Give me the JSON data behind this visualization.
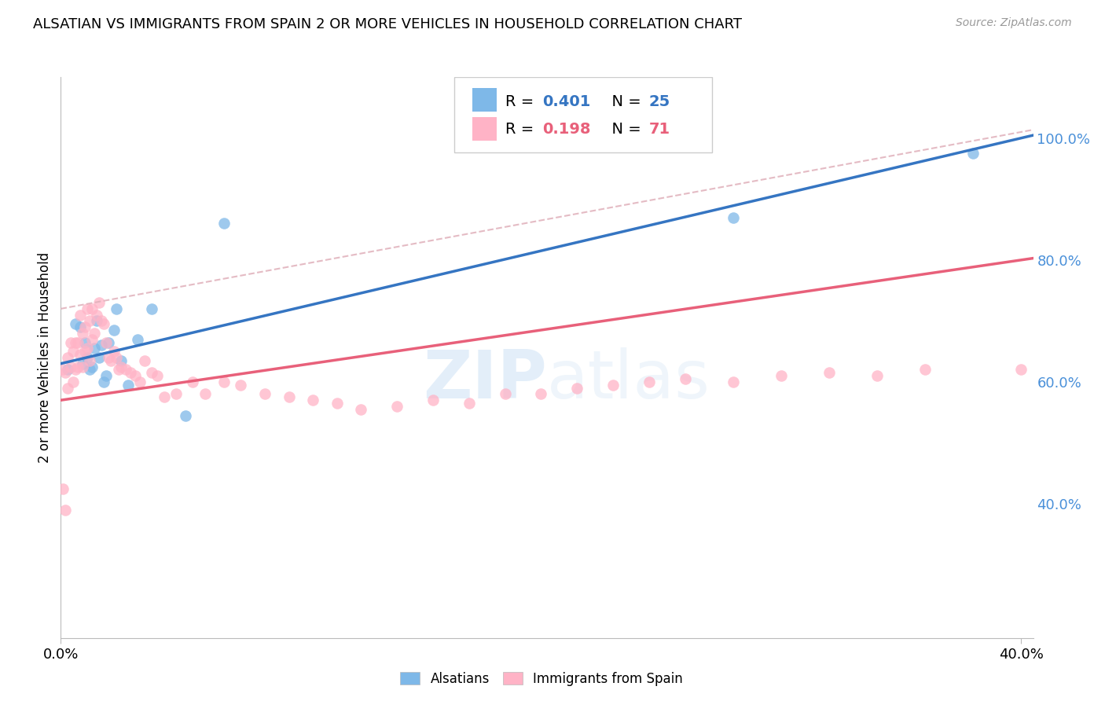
{
  "title": "ALSATIAN VS IMMIGRANTS FROM SPAIN 2 OR MORE VEHICLES IN HOUSEHOLD CORRELATION CHART",
  "source": "Source: ZipAtlas.com",
  "ylabel_left": "2 or more Vehicles in Household",
  "watermark_zip": "ZIP",
  "watermark_atlas": "atlas",
  "color_blue": "#7EB8E8",
  "color_pink": "#FFB3C6",
  "color_blue_line": "#3575C2",
  "color_pink_line": "#E8607A",
  "color_dashed": "#E0B0BA",
  "color_right_axis": "#4A90D9",
  "color_grid": "#D0D0DC",
  "r_blue": "0.401",
  "n_blue": "25",
  "r_pink": "0.198",
  "n_pink": "71",
  "x_min": 0.0,
  "x_max": 0.4,
  "y_min": 0.18,
  "y_max": 1.1,
  "right_yticks": [
    0.4,
    0.6,
    0.8,
    1.0
  ],
  "right_yticklabels": [
    "40.0%",
    "60.0%",
    "80.0%",
    "100.0%"
  ],
  "x_tick_positions": [
    0.0,
    0.4
  ],
  "x_tick_labels": [
    "0.0%",
    "40.0%"
  ],
  "alsatian_x": [
    0.003,
    0.006,
    0.008,
    0.009,
    0.01,
    0.011,
    0.012,
    0.013,
    0.014,
    0.015,
    0.016,
    0.017,
    0.018,
    0.019,
    0.02,
    0.022,
    0.023,
    0.025,
    0.028,
    0.032,
    0.038,
    0.052,
    0.068,
    0.28,
    0.38
  ],
  "alsatian_y": [
    0.62,
    0.695,
    0.69,
    0.63,
    0.665,
    0.64,
    0.62,
    0.625,
    0.655,
    0.7,
    0.64,
    0.66,
    0.6,
    0.61,
    0.665,
    0.685,
    0.72,
    0.635,
    0.595,
    0.67,
    0.72,
    0.545,
    0.86,
    0.87,
    0.975
  ],
  "spain_x": [
    0.001,
    0.001,
    0.002,
    0.002,
    0.003,
    0.003,
    0.004,
    0.004,
    0.005,
    0.005,
    0.006,
    0.006,
    0.007,
    0.007,
    0.008,
    0.008,
    0.009,
    0.009,
    0.01,
    0.01,
    0.011,
    0.011,
    0.012,
    0.012,
    0.013,
    0.013,
    0.014,
    0.015,
    0.016,
    0.017,
    0.018,
    0.019,
    0.02,
    0.021,
    0.022,
    0.023,
    0.024,
    0.025,
    0.027,
    0.029,
    0.031,
    0.033,
    0.035,
    0.038,
    0.04,
    0.043,
    0.048,
    0.055,
    0.06,
    0.068,
    0.075,
    0.085,
    0.095,
    0.105,
    0.115,
    0.125,
    0.14,
    0.155,
    0.17,
    0.185,
    0.2,
    0.215,
    0.23,
    0.245,
    0.26,
    0.28,
    0.3,
    0.32,
    0.34,
    0.36,
    0.4
  ],
  "spain_y": [
    0.425,
    0.62,
    0.39,
    0.615,
    0.59,
    0.64,
    0.625,
    0.665,
    0.6,
    0.65,
    0.665,
    0.62,
    0.665,
    0.625,
    0.71,
    0.645,
    0.68,
    0.625,
    0.65,
    0.69,
    0.72,
    0.655,
    0.7,
    0.635,
    0.72,
    0.67,
    0.68,
    0.71,
    0.73,
    0.7,
    0.695,
    0.665,
    0.64,
    0.635,
    0.65,
    0.64,
    0.62,
    0.625,
    0.62,
    0.615,
    0.61,
    0.6,
    0.635,
    0.615,
    0.61,
    0.575,
    0.58,
    0.6,
    0.58,
    0.6,
    0.595,
    0.58,
    0.575,
    0.57,
    0.565,
    0.555,
    0.56,
    0.57,
    0.565,
    0.58,
    0.58,
    0.59,
    0.595,
    0.6,
    0.605,
    0.6,
    0.61,
    0.615,
    0.61,
    0.62,
    0.62
  ]
}
